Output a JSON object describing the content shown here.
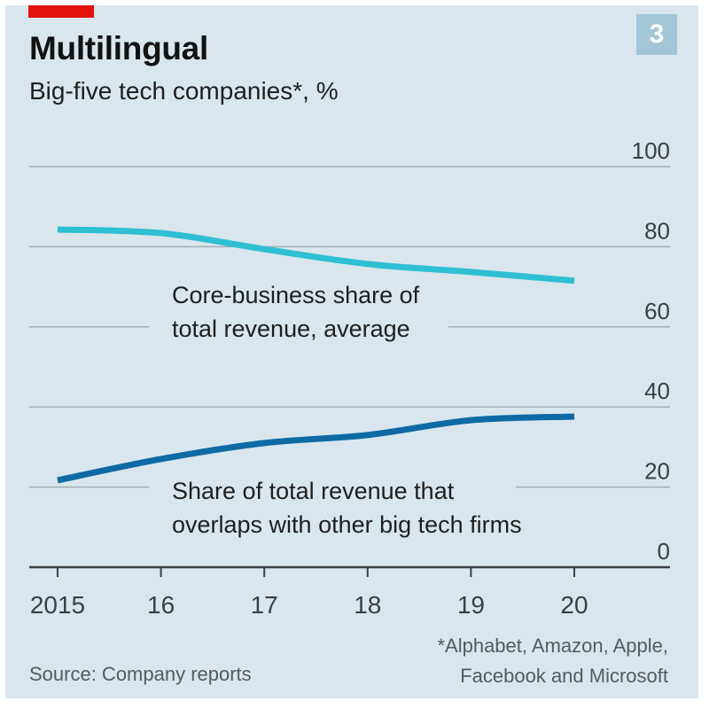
{
  "header": {
    "title": "Multilingual",
    "subtitle": "Big-five tech companies*, %",
    "chart_number": "3"
  },
  "footer": {
    "source": "Source: Company reports",
    "footnote_line1": "*Alphabet, Amazon, Apple,",
    "footnote_line2": "Facebook and Microsoft"
  },
  "colors": {
    "background": "#d9e6ee",
    "accent_red": "#e3120b",
    "series_core": "#2ebfd2",
    "series_overlap": "#0e6aa5",
    "badge": "#a3c5d8",
    "grid": "#9aa3a8"
  },
  "chart_data": {
    "type": "line",
    "title": "Multilingual",
    "subtitle": "Big-five tech companies*, %",
    "xlabel": "",
    "ylabel": "%",
    "x": [
      "2015",
      "16",
      "17",
      "18",
      "19",
      "20"
    ],
    "ylim": [
      0,
      100
    ],
    "yticks": [
      0,
      20,
      40,
      60,
      80,
      100
    ],
    "y_axis_side": "right",
    "grid": true,
    "series": [
      {
        "name": "Core-business share of total revenue, average",
        "label_lines": [
          "Core-business share of",
          "total revenue, average"
        ],
        "color": "#2ebfd2",
        "values": [
          84.3,
          83.4,
          79.4,
          75.7,
          73.7,
          71.5
        ]
      },
      {
        "name": "Share of total revenue that overlaps with other big tech firms",
        "label_lines": [
          "Share of total revenue that",
          "overlaps with other big tech firms"
        ],
        "color": "#0e6aa5",
        "values": [
          21.7,
          27.0,
          31.0,
          33.0,
          36.7,
          37.6
        ]
      }
    ]
  }
}
